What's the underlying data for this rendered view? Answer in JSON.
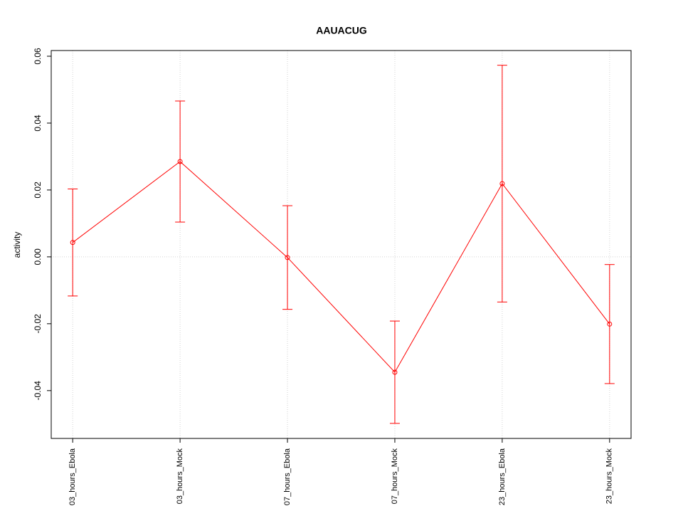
{
  "chart_data": {
    "type": "errorline",
    "title": "AAUACUG",
    "y_label": "activity",
    "categories": [
      "03_hours_Ebola",
      "03_hours_Mock",
      "07_hours_Ebola",
      "07_hours_Mock",
      "23_hours_Ebola",
      "23_hours_Mock"
    ],
    "values": [
      0.0043,
      0.0285,
      -0.0002,
      -0.0345,
      0.0219,
      -0.0201
    ],
    "errors": [
      0.016,
      0.0181,
      0.0155,
      0.0153,
      0.0354,
      0.0178
    ],
    "color": "#ff0000",
    "ylim": [
      -0.0543,
      0.0617
    ],
    "yticks": [
      -0.04,
      -0.02,
      {
        "value": 0,
        "label": "0.00"
      },
      0.02,
      0.04,
      0.06
    ],
    "grid": true,
    "hline": 0
  }
}
